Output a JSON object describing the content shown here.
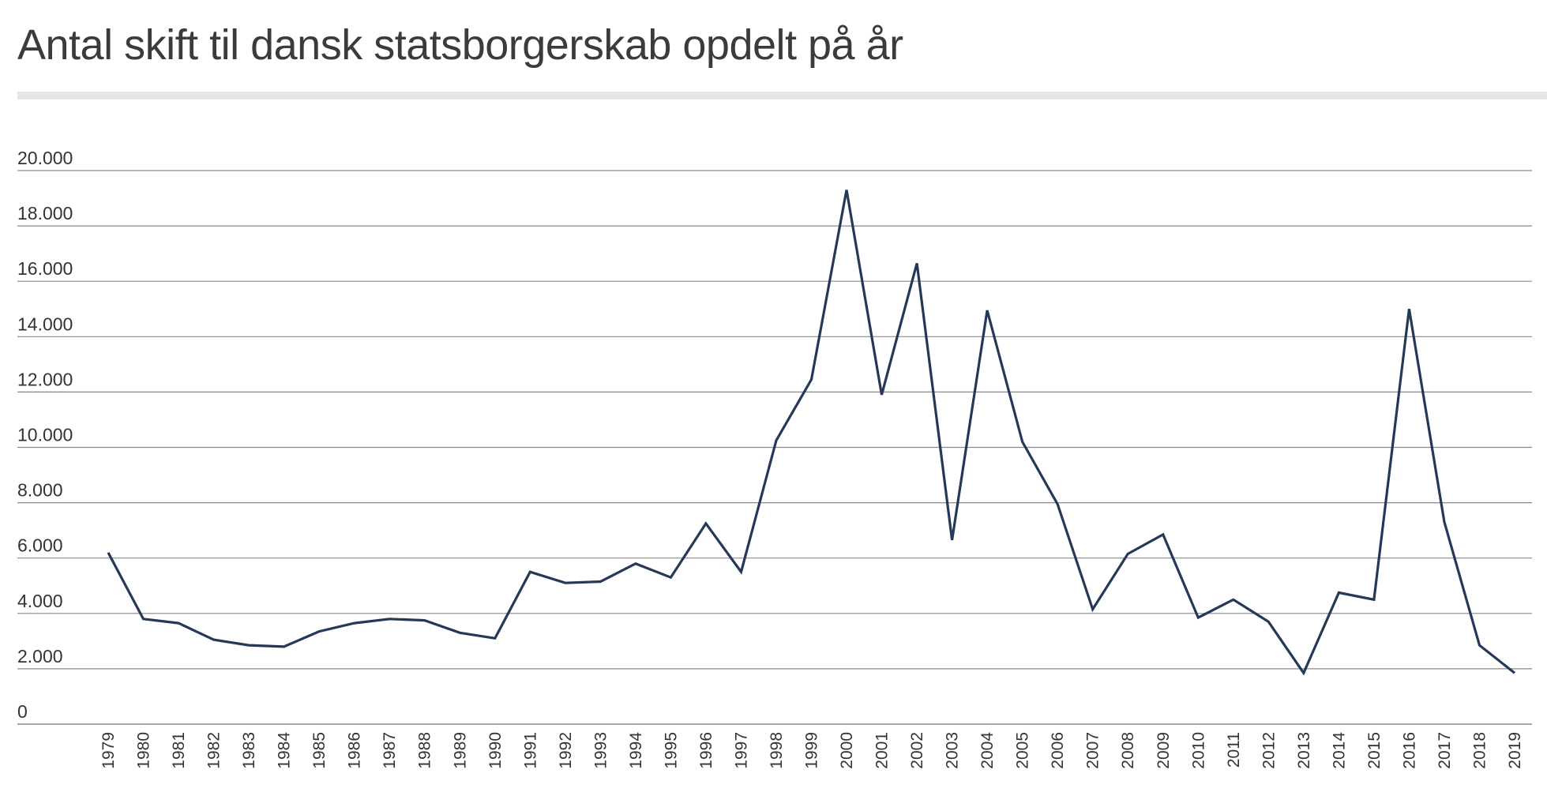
{
  "header": {
    "title": "Antal skift til dansk statsborgerskab opdelt på år"
  },
  "chart_data": {
    "type": "line",
    "title": "Antal skift til dansk statsborgerskab opdelt på år",
    "xlabel": "",
    "ylabel": "",
    "ylim": [
      0,
      20000
    ],
    "yticks": [
      0,
      2000,
      4000,
      6000,
      8000,
      10000,
      12000,
      14000,
      16000,
      18000,
      20000
    ],
    "ytick_labels": [
      "0",
      "2.000",
      "4.000",
      "6.000",
      "8.000",
      "10.000",
      "12.000",
      "14.000",
      "16.000",
      "18.000",
      "20.000"
    ],
    "grid": true,
    "line_color": "#253858",
    "x": [
      "1979",
      "1980",
      "1981",
      "1982",
      "1983",
      "1984",
      "1985",
      "1986",
      "1987",
      "1988",
      "1989",
      "1990",
      "1991",
      "1992",
      "1993",
      "1994",
      "1995",
      "1996",
      "1997",
      "1998",
      "1999",
      "2000",
      "2001",
      "2002",
      "2003",
      "2004",
      "2005",
      "2006",
      "2007",
      "2008",
      "2009",
      "2010",
      "2011",
      "2012",
      "2013",
      "2014",
      "2015",
      "2016",
      "2017",
      "2018",
      "2019"
    ],
    "series": [
      {
        "values": [
          6200,
          3800,
          3650,
          3050,
          2850,
          2800,
          3350,
          3650,
          3800,
          3750,
          3300,
          3100,
          5500,
          5100,
          5150,
          5800,
          5300,
          7250,
          5500,
          10250,
          12450,
          19300,
          11900,
          16650,
          6650,
          14950,
          10200,
          7950,
          4150,
          6150,
          6850,
          3850,
          4500,
          3700,
          1850,
          4750,
          4500,
          15000,
          7300,
          2850,
          1850
        ]
      }
    ]
  }
}
